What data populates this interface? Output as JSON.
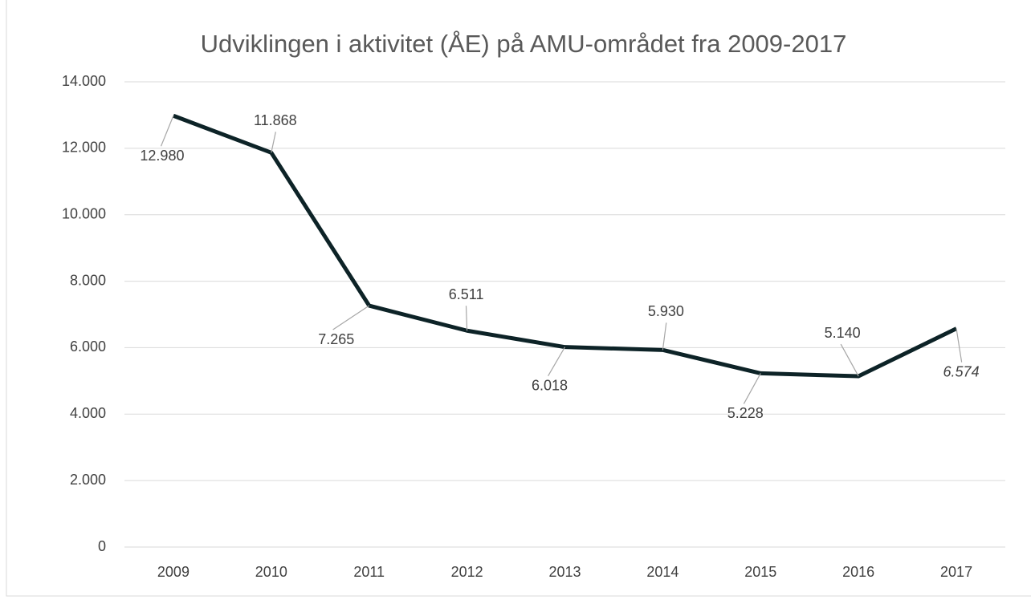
{
  "chart_data": {
    "type": "line",
    "title": "Udviklingen i aktivitet (ÅE) på AMU-området fra 2009-2017",
    "categories": [
      "2009",
      "2010",
      "2011",
      "2012",
      "2013",
      "2014",
      "2015",
      "2016",
      "2017"
    ],
    "series": [
      {
        "name": "Aktivitet (ÅE)",
        "color": "#0d2327",
        "values": [
          12980,
          11868,
          7265,
          6511,
          6018,
          5930,
          5228,
          5140,
          6574
        ],
        "value_labels": [
          "12.980",
          "11.868",
          "7.265",
          "6.511",
          "6.018",
          "5.930",
          "5.228",
          "5.140",
          "6.574"
        ]
      }
    ],
    "ylim": [
      0,
      14000
    ],
    "yticks": [
      0,
      {
        "value": 2000,
        "label": "2.000"
      },
      {
        "value": 4000,
        "label": "4.000"
      },
      {
        "value": 6000,
        "label": "6.000"
      },
      {
        "value": 8000,
        "label": "8.000"
      },
      {
        "value": 10000,
        "label": "10.000"
      },
      {
        "value": 12000,
        "label": "12.000"
      },
      {
        "value": 14000,
        "label": "14.000"
      }
    ],
    "grid": true
  }
}
